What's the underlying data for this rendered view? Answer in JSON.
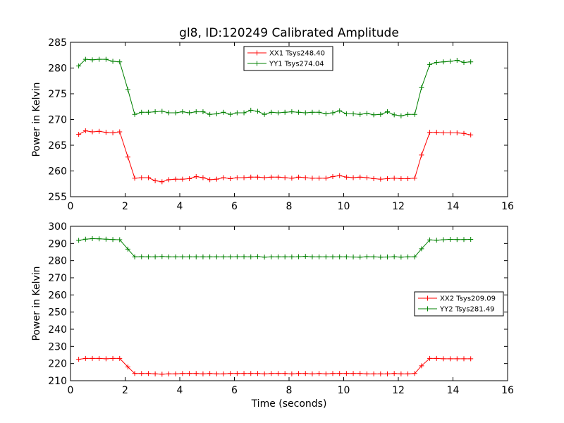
{
  "figure_title": "gl8, ID:120249 Calibrated Amplitude",
  "chart_data": [
    {
      "type": "line",
      "title": "gl8, ID:120249 Calibrated Amplitude",
      "xlabel": "",
      "ylabel": "Power in Kelvin",
      "xlim": [
        0,
        16
      ],
      "ylim": [
        255,
        285
      ],
      "xticks": [
        0,
        2,
        4,
        6,
        8,
        10,
        12,
        14,
        16
      ],
      "yticks": [
        255,
        260,
        265,
        270,
        275,
        280,
        285
      ],
      "grid": false,
      "legend_position": "top-center",
      "x": [
        0.3,
        0.55,
        0.8,
        1.05,
        1.3,
        1.55,
        1.8,
        2.1,
        2.35,
        2.6,
        2.85,
        3.1,
        3.35,
        3.6,
        3.85,
        4.1,
        4.35,
        4.6,
        4.85,
        5.1,
        5.35,
        5.6,
        5.85,
        6.1,
        6.35,
        6.6,
        6.85,
        7.1,
        7.35,
        7.6,
        7.85,
        8.1,
        8.35,
        8.6,
        8.85,
        9.1,
        9.35,
        9.6,
        9.85,
        10.1,
        10.35,
        10.6,
        10.85,
        11.1,
        11.35,
        11.6,
        11.85,
        12.1,
        12.35,
        12.6,
        12.85,
        13.15,
        13.4,
        13.65,
        13.9,
        14.15,
        14.4,
        14.65
      ],
      "series": [
        {
          "name": "XX1 Tsys248.40",
          "color": "#ff0000",
          "values": [
            267.1,
            267.8,
            267.6,
            267.7,
            267.5,
            267.4,
            267.6,
            262.7,
            258.6,
            258.7,
            258.7,
            258.1,
            257.9,
            258.3,
            258.4,
            258.4,
            258.5,
            258.9,
            258.7,
            258.3,
            258.4,
            258.7,
            258.5,
            258.7,
            258.7,
            258.8,
            258.8,
            258.7,
            258.8,
            258.8,
            258.7,
            258.6,
            258.8,
            258.7,
            258.6,
            258.6,
            258.6,
            258.9,
            259.1,
            258.8,
            258.7,
            258.8,
            258.7,
            258.5,
            258.4,
            258.5,
            258.6,
            258.5,
            258.5,
            258.6,
            263.1,
            267.5,
            267.5,
            267.4,
            267.4,
            267.4,
            267.3,
            267.0
          ]
        },
        {
          "name": "YY1 Tsys274.04",
          "color": "#008000",
          "values": [
            280.4,
            281.7,
            281.6,
            281.7,
            281.7,
            281.3,
            281.2,
            275.8,
            271.0,
            271.4,
            271.4,
            271.5,
            271.6,
            271.3,
            271.3,
            271.5,
            271.3,
            271.5,
            271.5,
            271.0,
            271.1,
            271.4,
            271.0,
            271.3,
            271.3,
            271.8,
            271.6,
            271.0,
            271.4,
            271.3,
            271.4,
            271.5,
            271.4,
            271.3,
            271.4,
            271.4,
            271.1,
            271.3,
            271.7,
            271.1,
            271.1,
            271.0,
            271.2,
            270.9,
            271.0,
            271.5,
            270.9,
            270.7,
            271.0,
            271.0,
            276.2,
            280.7,
            281.1,
            281.2,
            281.3,
            281.5,
            281.1,
            281.2
          ]
        }
      ]
    },
    {
      "type": "line",
      "title": "",
      "xlabel": "Time (seconds)",
      "ylabel": "Power in Kelvin",
      "xlim": [
        0,
        16
      ],
      "ylim": [
        210,
        300
      ],
      "xticks": [
        0,
        2,
        4,
        6,
        8,
        10,
        12,
        14,
        16
      ],
      "yticks": [
        210,
        220,
        230,
        240,
        250,
        260,
        270,
        280,
        290,
        300
      ],
      "grid": false,
      "legend_position": "center-right",
      "x": [
        0.3,
        0.55,
        0.8,
        1.05,
        1.3,
        1.55,
        1.8,
        2.1,
        2.35,
        2.6,
        2.85,
        3.1,
        3.35,
        3.6,
        3.85,
        4.1,
        4.35,
        4.6,
        4.85,
        5.1,
        5.35,
        5.6,
        5.85,
        6.1,
        6.35,
        6.6,
        6.85,
        7.1,
        7.35,
        7.6,
        7.85,
        8.1,
        8.35,
        8.6,
        8.85,
        9.1,
        9.35,
        9.6,
        9.85,
        10.1,
        10.35,
        10.6,
        10.85,
        11.1,
        11.35,
        11.6,
        11.85,
        12.1,
        12.35,
        12.6,
        12.85,
        13.15,
        13.4,
        13.65,
        13.9,
        14.15,
        14.4,
        14.65
      ],
      "series": [
        {
          "name": "XX2 Tsys209.09",
          "color": "#ff0000",
          "values": [
            222.5,
            223.0,
            223.0,
            223.0,
            222.8,
            223.0,
            223.0,
            218.0,
            214.2,
            214.2,
            214.2,
            214.0,
            213.8,
            214.0,
            214.0,
            214.2,
            214.2,
            214.2,
            214.0,
            214.2,
            214.0,
            214.0,
            214.2,
            214.2,
            214.2,
            214.2,
            214.2,
            214.0,
            214.2,
            214.2,
            214.2,
            214.0,
            214.2,
            214.2,
            214.0,
            214.2,
            214.0,
            214.2,
            214.2,
            214.2,
            214.2,
            214.2,
            214.0,
            214.0,
            214.0,
            214.0,
            214.2,
            214.0,
            214.0,
            214.2,
            218.7,
            223.0,
            223.0,
            222.8,
            222.8,
            222.8,
            222.8,
            222.8
          ]
        },
        {
          "name": "YY2 Tsys281.49",
          "color": "#008000",
          "values": [
            291.8,
            292.5,
            292.8,
            292.7,
            292.5,
            292.3,
            292.2,
            286.7,
            282.2,
            282.3,
            282.2,
            282.2,
            282.4,
            282.2,
            282.2,
            282.2,
            282.2,
            282.2,
            282.2,
            282.2,
            282.2,
            282.2,
            282.2,
            282.3,
            282.3,
            282.2,
            282.4,
            282.0,
            282.2,
            282.2,
            282.2,
            282.2,
            282.3,
            282.5,
            282.2,
            282.2,
            282.2,
            282.2,
            282.2,
            282.2,
            282.1,
            282.0,
            282.3,
            282.2,
            282.0,
            282.1,
            282.3,
            282.0,
            282.2,
            282.2,
            286.9,
            292.1,
            291.9,
            292.2,
            292.4,
            292.3,
            292.3,
            292.4
          ]
        }
      ]
    }
  ]
}
